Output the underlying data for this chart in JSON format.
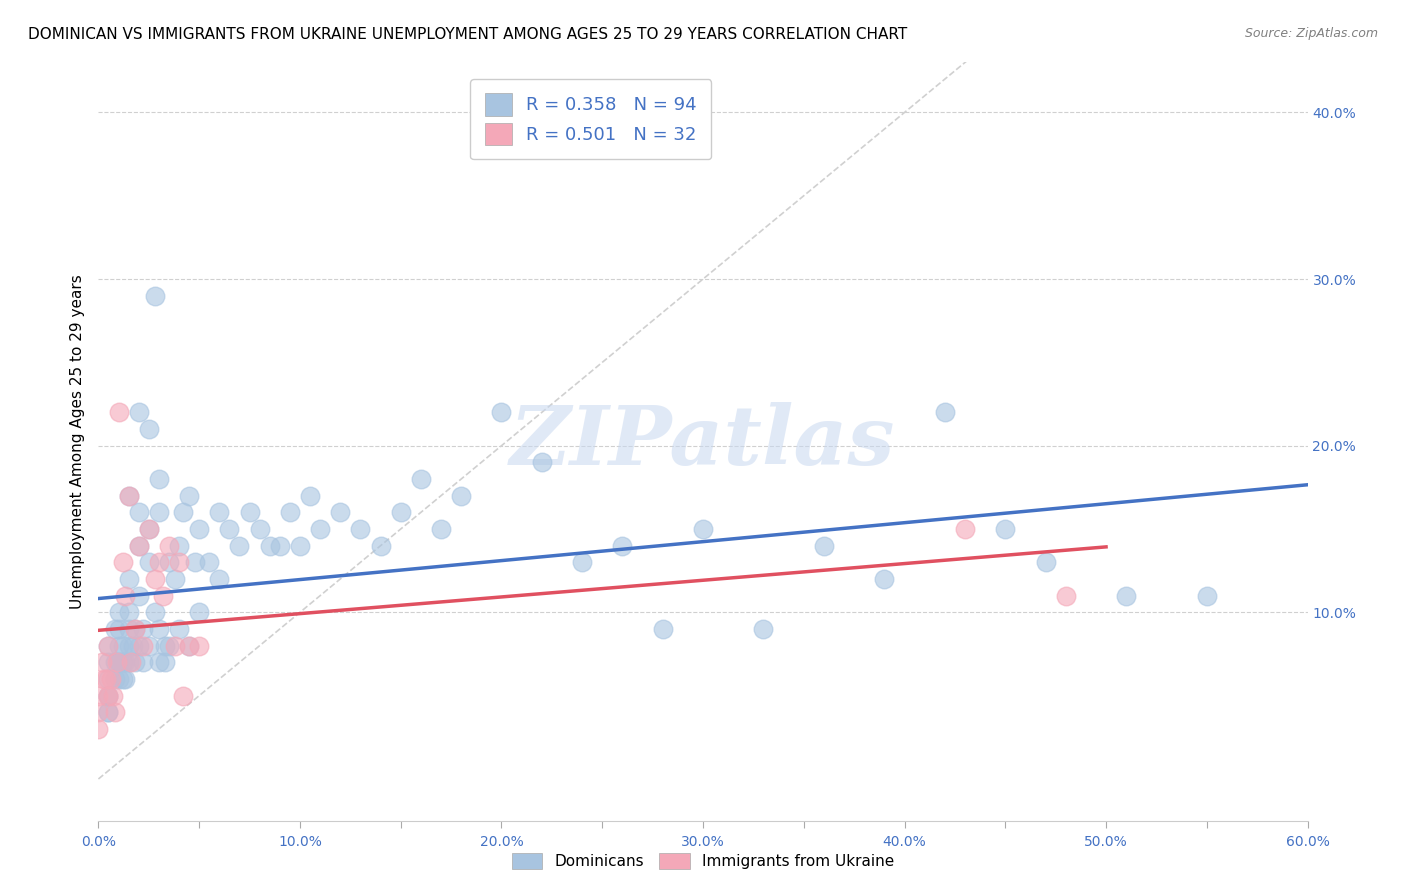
{
  "title": "DOMINICAN VS IMMIGRANTS FROM UKRAINE UNEMPLOYMENT AMONG AGES 25 TO 29 YEARS CORRELATION CHART",
  "source": "Source: ZipAtlas.com",
  "ylabel": "Unemployment Among Ages 25 to 29 years",
  "xlim": [
    0.0,
    0.6
  ],
  "ylim": [
    -0.025,
    0.43
  ],
  "right_yticks": [
    0.1,
    0.2,
    0.3,
    0.4
  ],
  "right_yticklabels": [
    "10.0%",
    "20.0%",
    "30.0%",
    "40.0%"
  ],
  "xtick_labels": [
    "0.0%",
    "",
    "10.0%",
    "",
    "20.0%",
    "",
    "30.0%",
    "",
    "40.0%",
    "",
    "50.0%",
    "",
    "60.0%"
  ],
  "xtick_values": [
    0.0,
    0.05,
    0.1,
    0.15,
    0.2,
    0.25,
    0.3,
    0.35,
    0.4,
    0.45,
    0.5,
    0.55,
    0.6
  ],
  "dominican_R": 0.358,
  "dominican_N": 94,
  "ukraine_R": 0.501,
  "ukraine_N": 32,
  "dominican_color": "#a8c4e0",
  "ukraine_color": "#f4a8b8",
  "dominican_line_color": "#4472c4",
  "ukraine_line_color": "#e05060",
  "diagonal_color": "#d0d0d0",
  "watermark": "ZIPatlas",
  "watermark_color": "#c8d8f0",
  "title_fontsize": 11,
  "dominican_x": [
    0.005,
    0.005,
    0.005,
    0.005,
    0.005,
    0.005,
    0.005,
    0.008,
    0.008,
    0.008,
    0.01,
    0.01,
    0.01,
    0.01,
    0.01,
    0.01,
    0.012,
    0.012,
    0.012,
    0.013,
    0.013,
    0.015,
    0.015,
    0.015,
    0.015,
    0.015,
    0.015,
    0.017,
    0.018,
    0.018,
    0.02,
    0.02,
    0.02,
    0.02,
    0.02,
    0.022,
    0.022,
    0.025,
    0.025,
    0.025,
    0.025,
    0.028,
    0.028,
    0.03,
    0.03,
    0.03,
    0.03,
    0.033,
    0.033,
    0.035,
    0.035,
    0.038,
    0.04,
    0.04,
    0.042,
    0.045,
    0.045,
    0.048,
    0.05,
    0.05,
    0.055,
    0.06,
    0.06,
    0.065,
    0.07,
    0.075,
    0.08,
    0.085,
    0.09,
    0.095,
    0.1,
    0.105,
    0.11,
    0.12,
    0.13,
    0.14,
    0.15,
    0.16,
    0.17,
    0.18,
    0.2,
    0.22,
    0.24,
    0.26,
    0.28,
    0.3,
    0.33,
    0.36,
    0.39,
    0.42,
    0.45,
    0.47,
    0.51,
    0.55
  ],
  "dominican_y": [
    0.08,
    0.07,
    0.06,
    0.05,
    0.05,
    0.04,
    0.04,
    0.09,
    0.07,
    0.06,
    0.1,
    0.09,
    0.08,
    0.07,
    0.07,
    0.06,
    0.08,
    0.07,
    0.06,
    0.07,
    0.06,
    0.17,
    0.12,
    0.1,
    0.09,
    0.08,
    0.07,
    0.08,
    0.09,
    0.07,
    0.22,
    0.16,
    0.14,
    0.11,
    0.08,
    0.09,
    0.07,
    0.21,
    0.15,
    0.13,
    0.08,
    0.29,
    0.1,
    0.18,
    0.16,
    0.09,
    0.07,
    0.08,
    0.07,
    0.13,
    0.08,
    0.12,
    0.14,
    0.09,
    0.16,
    0.17,
    0.08,
    0.13,
    0.15,
    0.1,
    0.13,
    0.16,
    0.12,
    0.15,
    0.14,
    0.16,
    0.15,
    0.14,
    0.14,
    0.16,
    0.14,
    0.17,
    0.15,
    0.16,
    0.15,
    0.14,
    0.16,
    0.18,
    0.15,
    0.17,
    0.22,
    0.19,
    0.13,
    0.14,
    0.09,
    0.15,
    0.09,
    0.14,
    0.12,
    0.22,
    0.15,
    0.13,
    0.11,
    0.11
  ],
  "ukraine_x": [
    0.0,
    0.0,
    0.0,
    0.002,
    0.003,
    0.004,
    0.005,
    0.005,
    0.006,
    0.007,
    0.008,
    0.009,
    0.01,
    0.012,
    0.013,
    0.015,
    0.016,
    0.018,
    0.02,
    0.022,
    0.025,
    0.028,
    0.03,
    0.032,
    0.035,
    0.038,
    0.04,
    0.042,
    0.045,
    0.05,
    0.43,
    0.48
  ],
  "ukraine_y": [
    0.05,
    0.04,
    0.03,
    0.07,
    0.06,
    0.06,
    0.08,
    0.05,
    0.06,
    0.05,
    0.04,
    0.07,
    0.22,
    0.13,
    0.11,
    0.17,
    0.07,
    0.09,
    0.14,
    0.08,
    0.15,
    0.12,
    0.13,
    0.11,
    0.14,
    0.08,
    0.13,
    0.05,
    0.08,
    0.08,
    0.15,
    0.11
  ]
}
